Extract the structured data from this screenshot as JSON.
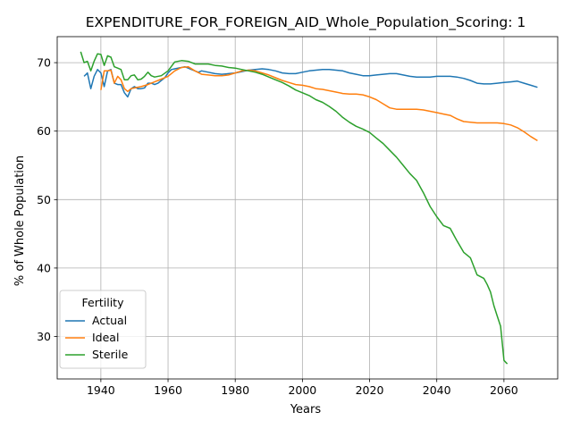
{
  "chart_data": {
    "type": "line",
    "title": "EXPENDITURE_FOR_FOREIGN_AID_Whole_Population_Scoring: 1",
    "xlabel": "Years",
    "ylabel": "% of Whole Population",
    "xlim": [
      1927,
      2076
    ],
    "ylim": [
      23.8,
      73.8
    ],
    "xticks": [
      1940,
      1960,
      1980,
      2000,
      2020,
      2040,
      2060
    ],
    "yticks": [
      30,
      40,
      50,
      60,
      70
    ],
    "grid": true,
    "legend": {
      "title": "Fertility",
      "placement": "lower-left"
    },
    "series": [
      {
        "name": "Actual",
        "color": "#1f77b4",
        "x": [
          1935,
          1936,
          1937,
          1938,
          1939,
          1940,
          1941,
          1942,
          1943,
          1944,
          1945,
          1946,
          1947,
          1948,
          1949,
          1950,
          1951,
          1952,
          1953,
          1954,
          1955,
          1956,
          1957,
          1958,
          1959,
          1960,
          1961,
          1962,
          1963,
          1964,
          1965,
          1966,
          1967,
          1968,
          1969,
          1970,
          1972,
          1974,
          1976,
          1978,
          1980,
          1982,
          1984,
          1986,
          1988,
          1990,
          1992,
          1994,
          1996,
          1998,
          2000,
          2002,
          2004,
          2006,
          2008,
          2010,
          2012,
          2014,
          2016,
          2018,
          2020,
          2022,
          2024,
          2026,
          2028,
          2030,
          2032,
          2034,
          2036,
          2038,
          2040,
          2042,
          2044,
          2046,
          2048,
          2050,
          2052,
          2054,
          2056,
          2058,
          2060,
          2062,
          2064,
          2066,
          2068,
          2070
        ],
        "y": [
          68.0,
          68.5,
          66.2,
          68.0,
          69.0,
          68.5,
          66.5,
          68.8,
          69.0,
          67.0,
          66.8,
          66.8,
          65.6,
          65.0,
          66.2,
          66.5,
          66.2,
          66.2,
          66.3,
          67.0,
          67.0,
          66.8,
          67.0,
          67.4,
          67.8,
          68.5,
          69.0,
          69.1,
          69.2,
          69.3,
          69.4,
          69.2,
          69.0,
          68.8,
          68.6,
          68.8,
          68.6,
          68.4,
          68.3,
          68.4,
          68.5,
          68.7,
          68.9,
          69.0,
          69.1,
          69.0,
          68.8,
          68.5,
          68.4,
          68.4,
          68.6,
          68.8,
          68.9,
          69.0,
          69.0,
          68.9,
          68.8,
          68.5,
          68.3,
          68.1,
          68.1,
          68.2,
          68.3,
          68.4,
          68.4,
          68.2,
          68.0,
          67.9,
          67.9,
          67.9,
          68.0,
          68.0,
          68.0,
          67.9,
          67.7,
          67.4,
          67.0,
          66.9,
          66.9,
          67.0,
          67.1,
          67.2,
          67.3,
          67.0,
          66.7,
          66.4
        ]
      },
      {
        "name": "Ideal",
        "color": "#ff7f0e",
        "x": [
          1940,
          1941,
          1942,
          1943,
          1944,
          1945,
          1946,
          1947,
          1948,
          1949,
          1950,
          1952,
          1954,
          1956,
          1958,
          1960,
          1962,
          1964,
          1966,
          1968,
          1970,
          1972,
          1974,
          1976,
          1978,
          1980,
          1982,
          1984,
          1986,
          1988,
          1990,
          1992,
          1994,
          1996,
          1998,
          2000,
          2002,
          2004,
          2006,
          2008,
          2010,
          2012,
          2014,
          2016,
          2018,
          2020,
          2022,
          2024,
          2026,
          2028,
          2030,
          2032,
          2034,
          2036,
          2038,
          2040,
          2042,
          2044,
          2046,
          2048,
          2050,
          2052,
          2054,
          2056,
          2058,
          2060,
          2062,
          2064,
          2066,
          2068,
          2070
        ],
        "y": [
          66.0,
          68.8,
          68.8,
          68.9,
          67.0,
          68.0,
          67.5,
          66.2,
          65.8,
          66.2,
          66.3,
          66.5,
          66.8,
          67.2,
          67.6,
          68.0,
          68.8,
          69.3,
          69.4,
          68.8,
          68.3,
          68.2,
          68.1,
          68.1,
          68.2,
          68.5,
          68.8,
          68.9,
          68.8,
          68.5,
          68.2,
          67.8,
          67.4,
          67.1,
          66.8,
          66.7,
          66.5,
          66.2,
          66.1,
          65.9,
          65.7,
          65.5,
          65.4,
          65.4,
          65.3,
          65.0,
          64.6,
          64.0,
          63.4,
          63.2,
          63.2,
          63.2,
          63.2,
          63.1,
          62.9,
          62.7,
          62.5,
          62.3,
          61.8,
          61.4,
          61.3,
          61.2,
          61.2,
          61.2,
          61.2,
          61.1,
          60.9,
          60.5,
          59.9,
          59.2,
          58.6
        ]
      },
      {
        "name": "Sterile",
        "color": "#2ca02c",
        "x": [
          1934,
          1935,
          1936,
          1937,
          1938,
          1939,
          1940,
          1941,
          1942,
          1943,
          1944,
          1945,
          1946,
          1947,
          1948,
          1949,
          1950,
          1951,
          1952,
          1953,
          1954,
          1955,
          1956,
          1958,
          1960,
          1962,
          1964,
          1966,
          1968,
          1970,
          1972,
          1974,
          1976,
          1978,
          1980,
          1982,
          1984,
          1986,
          1988,
          1990,
          1992,
          1994,
          1996,
          1998,
          2000,
          2002,
          2004,
          2006,
          2008,
          2010,
          2012,
          2014,
          2016,
          2018,
          2020,
          2022,
          2024,
          2026,
          2028,
          2030,
          2032,
          2034,
          2036,
          2038,
          2040,
          2042,
          2044,
          2046,
          2048,
          2050,
          2052,
          2054,
          2055,
          2056,
          2057,
          2058,
          2059,
          2060,
          2061
        ],
        "y": [
          71.6,
          70.0,
          70.2,
          68.8,
          70.2,
          71.3,
          71.2,
          69.6,
          71.0,
          70.8,
          69.4,
          69.2,
          69.0,
          67.5,
          67.5,
          68.1,
          68.2,
          67.5,
          67.6,
          68.0,
          68.6,
          68.1,
          67.9,
          68.1,
          68.8,
          70.1,
          70.3,
          70.2,
          69.8,
          69.8,
          69.8,
          69.6,
          69.5,
          69.3,
          69.2,
          69.0,
          68.8,
          68.6,
          68.3,
          67.9,
          67.5,
          67.1,
          66.6,
          66.0,
          65.6,
          65.2,
          64.6,
          64.2,
          63.6,
          62.9,
          62.0,
          61.3,
          60.7,
          60.3,
          59.8,
          59.0,
          58.2,
          57.2,
          56.2,
          55.0,
          53.8,
          52.8,
          51.0,
          49.0,
          47.5,
          46.2,
          45.8,
          44.0,
          42.3,
          41.5,
          39.0,
          38.5,
          37.6,
          36.5,
          34.5,
          33.0,
          31.5,
          26.5,
          26.0
        ]
      }
    ]
  }
}
